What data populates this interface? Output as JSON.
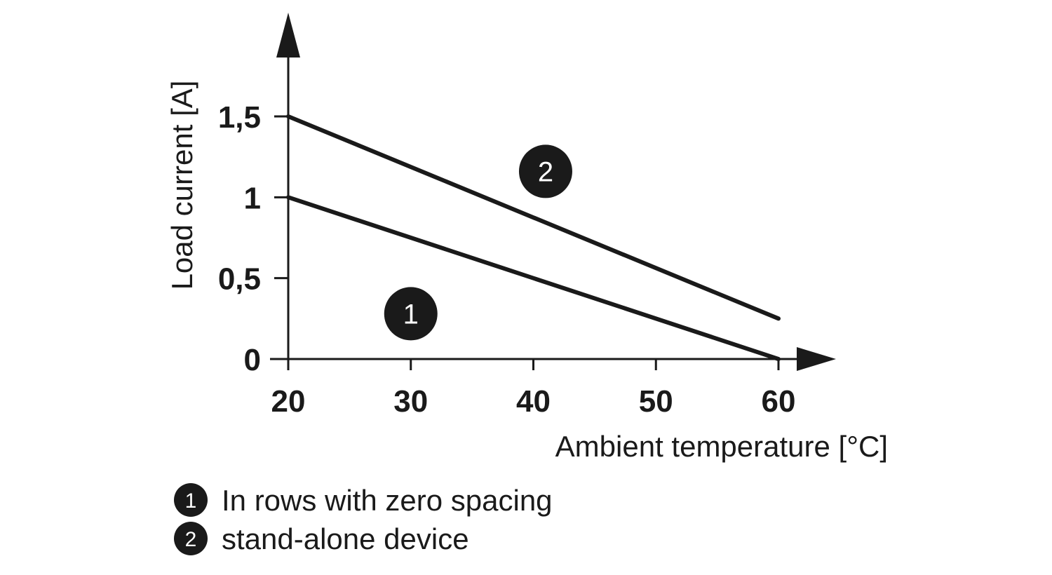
{
  "chart_data": {
    "type": "line",
    "xlabel": "Ambient temperature [°C]",
    "ylabel": "Load current [A]",
    "xlim": [
      20,
      60
    ],
    "ylim": [
      0,
      1.5
    ],
    "x_ticks": [
      20,
      30,
      40,
      50,
      60
    ],
    "x_tick_labels": [
      "20",
      "30",
      "40",
      "50",
      "60"
    ],
    "y_ticks": [
      0,
      0.5,
      1,
      1.5
    ],
    "y_tick_labels": [
      "0",
      "0,5",
      "1",
      "1,5"
    ],
    "grid": false,
    "series": [
      {
        "marker": "1",
        "name": "In rows with zero spacing",
        "x": [
          20,
          60
        ],
        "y": [
          1.0,
          0.0
        ]
      },
      {
        "marker": "2",
        "name": "stand-alone device",
        "x": [
          20,
          60
        ],
        "y": [
          1.5,
          0.25
        ]
      }
    ]
  },
  "legend": {
    "placement": "bottom-left",
    "items": [
      {
        "marker": "1",
        "label": "In rows with zero spacing"
      },
      {
        "marker": "2",
        "label": "stand-alone device"
      }
    ]
  },
  "colors": {
    "ink": "#1a1a1a",
    "background": "#ffffff"
  }
}
